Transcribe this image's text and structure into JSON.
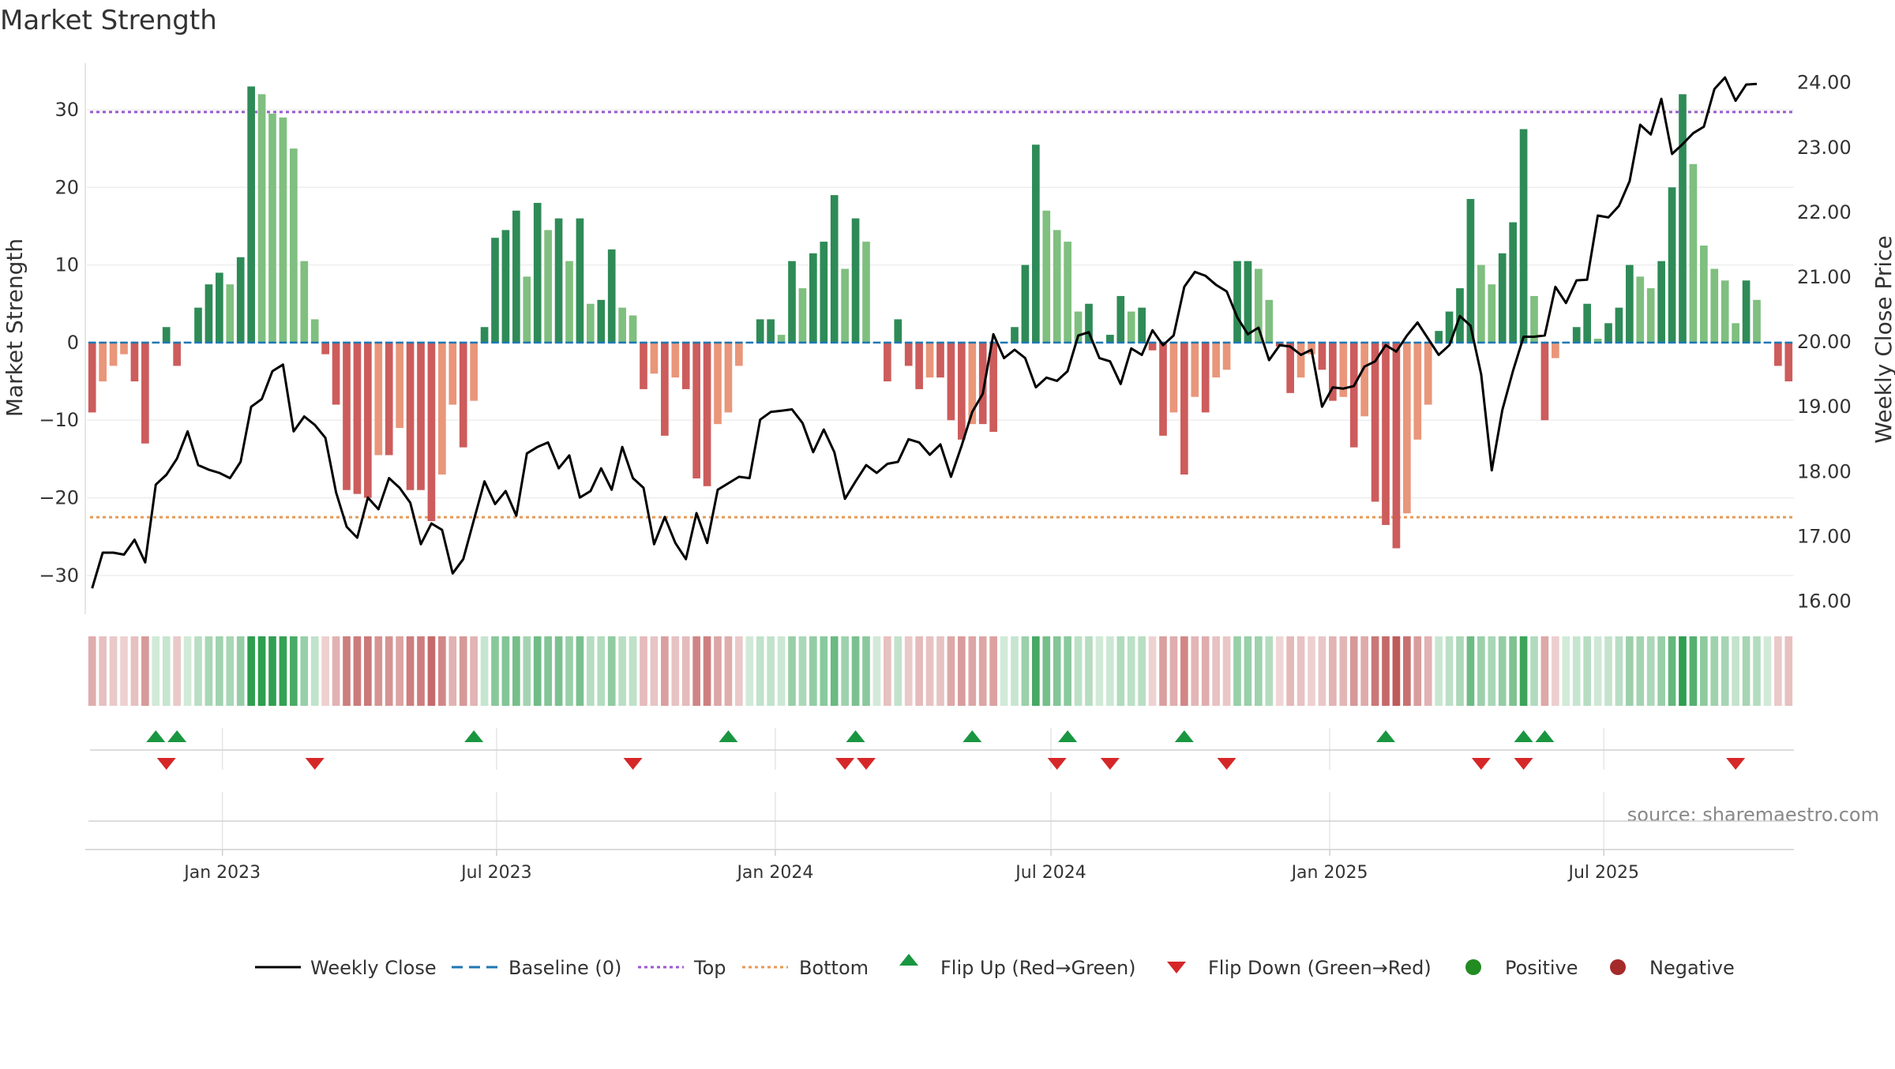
{
  "chart_data": {
    "type": "bar",
    "title": "Market Strength",
    "ylabel_left": "Market Strength",
    "ylabel_right": "Weekly Close Price",
    "source": "source: sharemaestro.com",
    "x_start": "2022-10-07",
    "week_step_days": 7,
    "left_ylim": [
      -35,
      36
    ],
    "left_ticks": [
      -30,
      -20,
      -10,
      0,
      10,
      20,
      30
    ],
    "right_ylim": [
      15.8,
      24.3
    ],
    "right_ticks": [
      "16.00",
      "17.00",
      "18.00",
      "19.00",
      "20.00",
      "21.00",
      "22.00",
      "23.00",
      "24.00"
    ],
    "x_ticks": [
      {
        "label": "Jan 2023",
        "date": "2023-01-01"
      },
      {
        "label": "Jul 2023",
        "date": "2023-07-01"
      },
      {
        "label": "Jan 2024",
        "date": "2024-01-01"
      },
      {
        "label": "Jul 2024",
        "date": "2024-07-01"
      },
      {
        "label": "Jan 2025",
        "date": "2025-01-01"
      },
      {
        "label": "Jul 2025",
        "date": "2025-07-01"
      }
    ],
    "top_level": 29.7,
    "bottom_level": -22.5,
    "strength": [
      -9,
      -5,
      -3,
      -1.5,
      -5,
      -13,
      0,
      2,
      -3,
      0,
      4.5,
      7.5,
      9,
      7.5,
      11,
      33,
      32,
      29.5,
      29,
      25,
      10.5,
      3,
      -1.5,
      -8,
      -19,
      -19.5,
      -20,
      -14.5,
      -14.5,
      -11,
      -19,
      -19,
      -23,
      -17,
      -8,
      -13.5,
      -7.5,
      2,
      13.5,
      14.5,
      17,
      8.5,
      18,
      14.5,
      16,
      10.5,
      16,
      5,
      5.5,
      12,
      4.5,
      3.5,
      -6,
      -4,
      -12,
      -4.5,
      -6,
      -17.5,
      -18.5,
      -10.5,
      -9,
      -3,
      0,
      3,
      3,
      1,
      10.5,
      7,
      11.5,
      13,
      19,
      9.5,
      16,
      13,
      0,
      -5,
      3,
      -3,
      -6,
      -4.5,
      -4.5,
      -10,
      -12.5,
      -10.5,
      -10.5,
      -11.5,
      0,
      2,
      10,
      25.5,
      17,
      14.5,
      13,
      4,
      5,
      0,
      1,
      6,
      4,
      4.5,
      -1,
      -12,
      -9,
      -17,
      -7,
      -9,
      -4.5,
      -3.5,
      10.5,
      10.5,
      9.5,
      5.5,
      -0.5,
      -6.5,
      -4.5,
      -1.5,
      -3.5,
      -7.5,
      -7,
      -13.5,
      -9.5,
      -20.5,
      -23.5,
      -26.5,
      -22,
      -12.5,
      -8,
      1.5,
      4,
      7,
      18.5,
      10,
      7.5,
      11.5,
      15.5,
      27.5,
      6,
      -10,
      -2,
      0,
      2,
      5,
      0.5,
      2.5,
      4.5,
      10,
      8.5,
      7,
      10.5,
      20,
      32,
      23,
      12.5,
      9.5,
      8,
      2.5,
      8,
      5.5,
      0,
      -3,
      -5
    ],
    "price": [
      16.2,
      16.75,
      16.75,
      16.72,
      16.95,
      16.6,
      17.8,
      17.95,
      18.2,
      18.62,
      18.1,
      18.03,
      17.98,
      17.9,
      18.15,
      19.0,
      19.12,
      19.55,
      19.65,
      18.62,
      18.85,
      18.72,
      18.52,
      17.68,
      17.15,
      16.98,
      17.6,
      17.42,
      17.9,
      17.75,
      17.52,
      16.88,
      17.2,
      17.1,
      16.43,
      16.65,
      17.25,
      17.85,
      17.5,
      17.7,
      17.32,
      18.28,
      18.38,
      18.45,
      18.05,
      18.25,
      17.6,
      17.7,
      18.05,
      17.72,
      18.38,
      17.9,
      17.75,
      16.88,
      17.3,
      16.9,
      16.65,
      17.36,
      16.9,
      17.72,
      17.82,
      17.92,
      17.9,
      18.8,
      18.92,
      18.94,
      18.96,
      18.75,
      18.3,
      18.65,
      18.3,
      17.58,
      17.85,
      18.1,
      17.98,
      18.12,
      18.15,
      18.5,
      18.45,
      18.26,
      18.42,
      17.92,
      18.4,
      18.92,
      19.2,
      20.12,
      19.75,
      19.88,
      19.75,
      19.3,
      19.45,
      19.4,
      19.55,
      20.1,
      20.15,
      19.75,
      19.7,
      19.35,
      19.9,
      19.8,
      20.18,
      19.95,
      20.1,
      20.85,
      21.08,
      21.02,
      20.88,
      20.78,
      20.38,
      20.12,
      20.22,
      19.72,
      19.95,
      19.93,
      19.8,
      19.88,
      19.0,
      19.3,
      19.28,
      19.32,
      19.62,
      19.7,
      19.95,
      19.85,
      20.1,
      20.3,
      20.05,
      19.8,
      19.95,
      20.4,
      20.25,
      19.5,
      18.02,
      18.95,
      19.55,
      20.08,
      20.08,
      20.1,
      20.85,
      20.6,
      20.95,
      20.96,
      21.95,
      21.92,
      22.1,
      22.48,
      23.35,
      23.2,
      23.75,
      22.9,
      23.05,
      23.22,
      23.32,
      23.9,
      24.08,
      23.72,
      23.97,
      23.98
    ],
    "flip_up_weeks": [
      6,
      8,
      36,
      60,
      72,
      83,
      92,
      103,
      122,
      135,
      137
    ],
    "flip_down_weeks": [
      7,
      21,
      51,
      71,
      73,
      91,
      96,
      107,
      131,
      135,
      155
    ]
  },
  "legend": {
    "weekly_close": "Weekly Close",
    "baseline": "Baseline (0)",
    "top": "Top",
    "bottom": "Bottom",
    "flip_up": "Flip Up (Red→Green)",
    "flip_down": "Flip Down (Green→Red)",
    "positive": "Positive",
    "negative": "Negative"
  },
  "colors": {
    "green_dark": "#2e8b57",
    "green_light": "#7fbf7f",
    "red_dark": "#cd5c5c",
    "red_light": "#e9967a",
    "top_line": "#9b59d0",
    "bottom_line": "#e59a57",
    "baseline": "#1f77b4",
    "price_line": "#000000",
    "flip_up": "#1a9641",
    "flip_down": "#d62728",
    "positive_dot": "#228b22",
    "negative_dot": "#a52a2a"
  }
}
